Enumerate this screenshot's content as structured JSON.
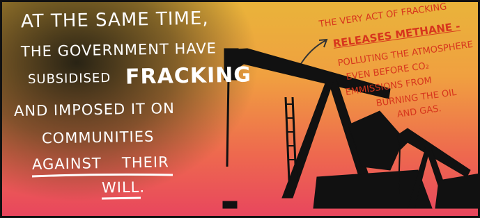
{
  "left_caption": {
    "lines": [
      "AT THE SAME TIME,",
      "THE GOVERNMENT HAVE",
      "SUBSIDISED",
      "FRACKING",
      "AND IMPOSED IT ON",
      "COMMUNITIES",
      "AGAINST",
      "THEIR",
      "WILL."
    ]
  },
  "right_caption": {
    "lines": [
      "THE VERY ACT OF FRACKING",
      "RELEASES METHANE -",
      "POLLUTING THE ATMOSPHERE",
      "EVEN BEFORE CO₂",
      "EMMISSIONS FROM",
      "BURNING THE OIL",
      "AND GAS."
    ]
  }
}
